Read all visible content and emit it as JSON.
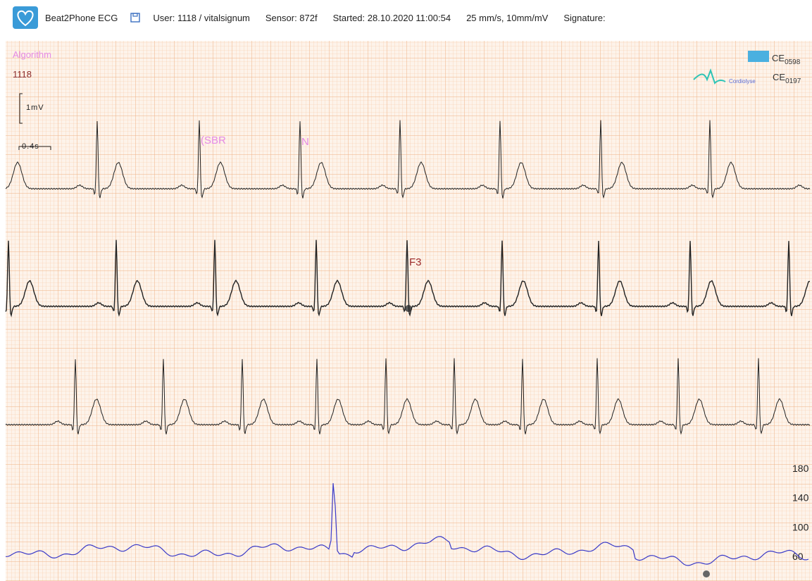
{
  "header": {
    "app_name": "Beat2Phone ECG",
    "user": "User: 1118 / vitalsignum",
    "sensor": "Sensor: 872f",
    "started": "Started: 28.10.2020 11:00:54",
    "settings": "25 mm/s, 10mm/mV",
    "signature": "Signature:"
  },
  "ecg": {
    "algorithm_label": "Algorithm",
    "patient_id": "1118",
    "amplitude_scale": "1mV",
    "time_scale": "0.4s",
    "annotations": [
      "(SBR",
      "N",
      "F3"
    ],
    "certifications": [
      {
        "mark": "CE",
        "number": "0598"
      },
      {
        "mark": "CE",
        "brand": "Cordiolyse",
        "number": "0197"
      }
    ]
  },
  "heart_rate": {
    "ticks": [
      180,
      140,
      100,
      60
    ]
  }
}
